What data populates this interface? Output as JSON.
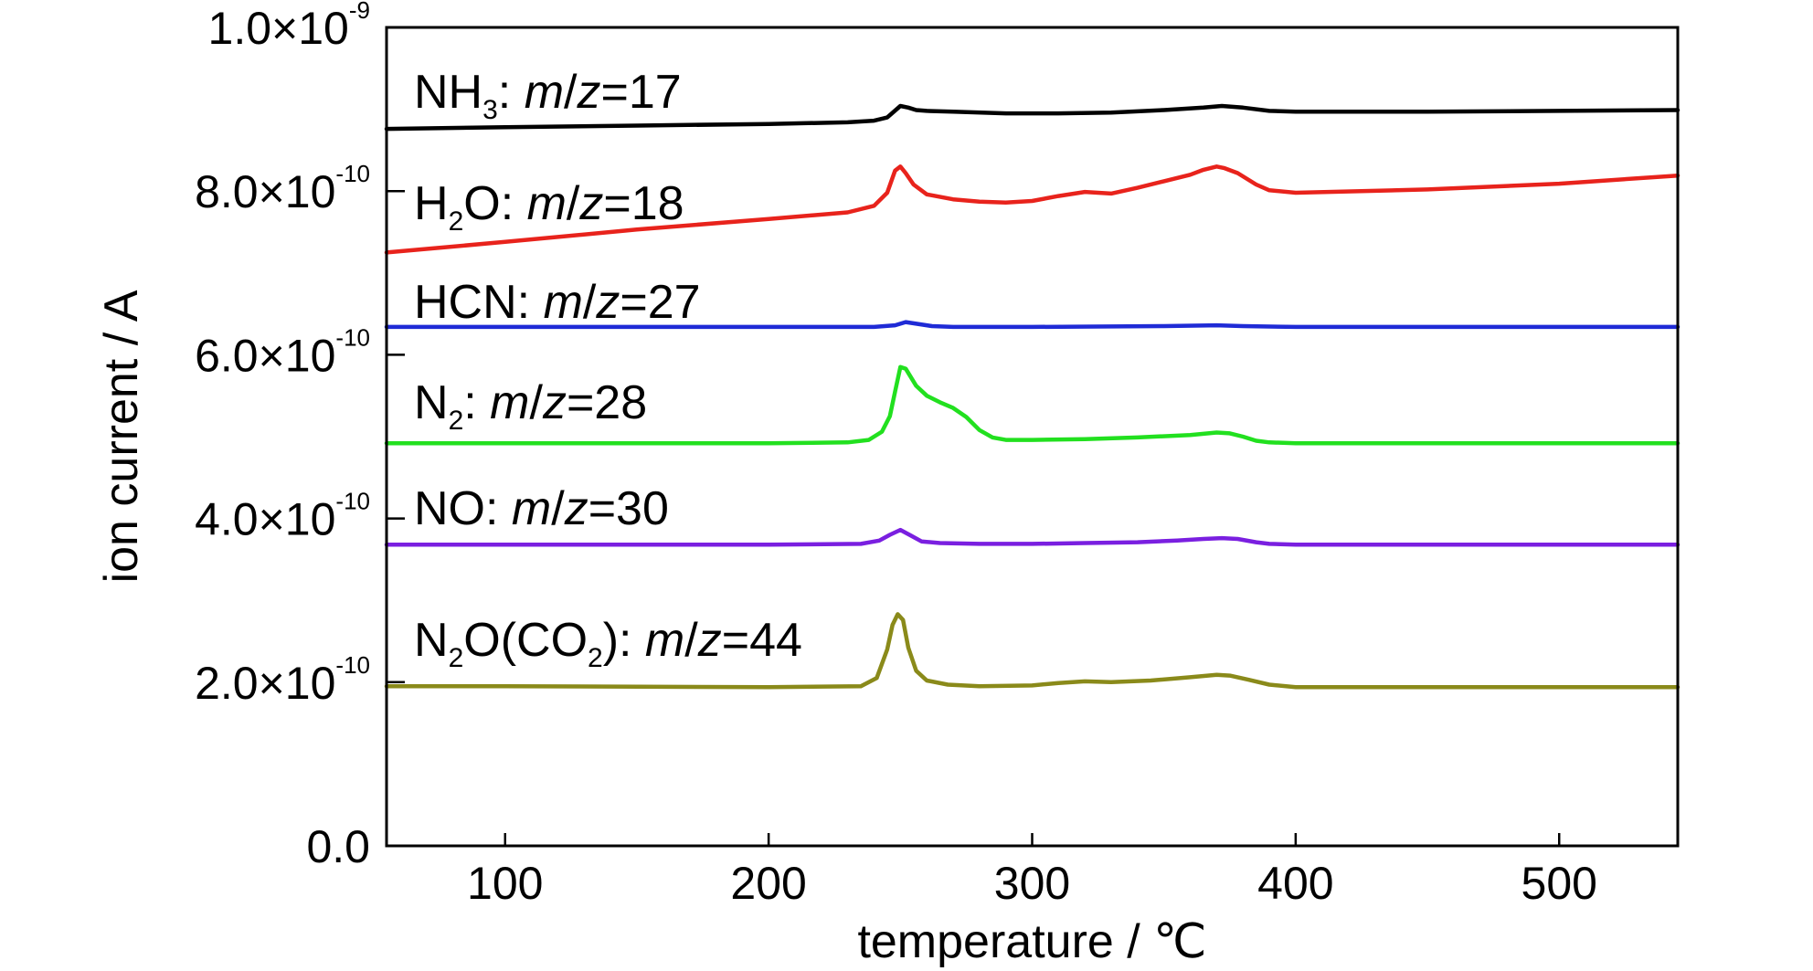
{
  "chart_data": {
    "type": "line",
    "xlabel": "temperature / ℃",
    "ylabel": "ion current / A",
    "xlim": [
      55,
      545
    ],
    "ylim": [
      0,
      1e-09
    ],
    "x_ticks": [
      100,
      200,
      300,
      400,
      500
    ],
    "x_tick_labels": [
      "100",
      "200",
      "300",
      "400",
      "500"
    ],
    "y_ticks": [
      0,
      2e-10,
      4e-10,
      6e-10,
      8e-10,
      1e-09
    ],
    "y_tick_labels": [
      {
        "text": "0.0",
        "mantissa": "0.0",
        "times": "",
        "base": "",
        "exp": ""
      },
      {
        "text": "2.0×10^-10",
        "mantissa": "2.0",
        "times": "×",
        "base": "10",
        "exp": "-10"
      },
      {
        "text": "4.0×10^-10",
        "mantissa": "4.0",
        "times": "×",
        "base": "10",
        "exp": "-10"
      },
      {
        "text": "6.0×10^-10",
        "mantissa": "6.0",
        "times": "×",
        "base": "10",
        "exp": "-10"
      },
      {
        "text": "8.0×10^-10",
        "mantissa": "8.0",
        "times": "×",
        "base": "10",
        "exp": "-10"
      },
      {
        "text": "1.0×10^-9",
        "mantissa": "1.0",
        "times": "×",
        "base": "10",
        "exp": "-9"
      }
    ],
    "grid": false,
    "legend": "inline labels above each curve",
    "series": [
      {
        "name": "NH3: m/z=17",
        "label_parts": [
          {
            "t": "NH",
            "s": ""
          },
          {
            "t": "3",
            "s": "sub"
          },
          {
            "t": ": ",
            "s": ""
          },
          {
            "t": "m",
            "s": "it"
          },
          {
            "t": "/",
            "s": ""
          },
          {
            "t": "z",
            "s": "it"
          },
          {
            "t": "=17",
            "s": ""
          }
        ],
        "color": "#000000",
        "x": [
          55,
          100,
          150,
          200,
          230,
          240,
          245,
          250,
          253,
          256,
          260,
          270,
          290,
          310,
          330,
          350,
          365,
          372,
          380,
          390,
          400,
          450,
          500,
          545
        ],
        "y": [
          8.76e-10,
          8.78e-10,
          8.8e-10,
          8.82e-10,
          8.84e-10,
          8.86e-10,
          8.9e-10,
          9.04e-10,
          9.02e-10,
          8.99e-10,
          8.98e-10,
          8.97e-10,
          8.95e-10,
          8.95e-10,
          8.96e-10,
          8.99e-10,
          9.02e-10,
          9.04e-10,
          9.02e-10,
          8.98e-10,
          8.97e-10,
          8.97e-10,
          8.98e-10,
          8.99e-10
        ]
      },
      {
        "name": "H2O: m/z=18",
        "label_parts": [
          {
            "t": "H",
            "s": ""
          },
          {
            "t": "2",
            "s": "sub"
          },
          {
            "t": "O: ",
            "s": ""
          },
          {
            "t": "m",
            "s": "it"
          },
          {
            "t": "/",
            "s": ""
          },
          {
            "t": "z",
            "s": "it"
          },
          {
            "t": "=18",
            "s": ""
          }
        ],
        "color": "#e8231c",
        "x": [
          55,
          100,
          150,
          200,
          230,
          240,
          245,
          248,
          250,
          252,
          255,
          260,
          270,
          280,
          290,
          300,
          310,
          320,
          330,
          340,
          350,
          360,
          365,
          370,
          373,
          378,
          385,
          390,
          400,
          450,
          500,
          545
        ],
        "y": [
          7.25e-10,
          7.38e-10,
          7.53e-10,
          7.66e-10,
          7.74e-10,
          7.82e-10,
          7.98e-10,
          8.25e-10,
          8.3e-10,
          8.22e-10,
          8.08e-10,
          7.96e-10,
          7.9e-10,
          7.87e-10,
          7.86e-10,
          7.88e-10,
          7.94e-10,
          7.99e-10,
          7.97e-10,
          8.04e-10,
          8.12e-10,
          8.2e-10,
          8.26e-10,
          8.3e-10,
          8.28e-10,
          8.22e-10,
          8.08e-10,
          8.01e-10,
          7.98e-10,
          8.02e-10,
          8.09e-10,
          8.19e-10
        ]
      },
      {
        "name": "HCN: m/z=27",
        "label_parts": [
          {
            "t": "HCN: ",
            "s": ""
          },
          {
            "t": "m",
            "s": "it"
          },
          {
            "t": "/",
            "s": ""
          },
          {
            "t": "z",
            "s": "it"
          },
          {
            "t": "=27",
            "s": ""
          }
        ],
        "color": "#1f2bd6",
        "x": [
          55,
          100,
          200,
          240,
          248,
          252,
          256,
          262,
          270,
          300,
          350,
          370,
          380,
          400,
          500,
          545
        ],
        "y": [
          6.34e-10,
          6.34e-10,
          6.34e-10,
          6.34e-10,
          6.36e-10,
          6.4e-10,
          6.38e-10,
          6.35e-10,
          6.34e-10,
          6.34e-10,
          6.35e-10,
          6.36e-10,
          6.35e-10,
          6.34e-10,
          6.34e-10,
          6.34e-10
        ]
      },
      {
        "name": "N2: m/z=28",
        "label_parts": [
          {
            "t": "N",
            "s": ""
          },
          {
            "t": "2",
            "s": "sub"
          },
          {
            "t": ": ",
            "s": ""
          },
          {
            "t": "m",
            "s": "it"
          },
          {
            "t": "/",
            "s": ""
          },
          {
            "t": "z",
            "s": "it"
          },
          {
            "t": "=28",
            "s": ""
          }
        ],
        "color": "#22e01f",
        "x": [
          55,
          100,
          200,
          230,
          238,
          243,
          246,
          248,
          250,
          252,
          256,
          260,
          265,
          270,
          275,
          280,
          285,
          290,
          300,
          320,
          340,
          360,
          370,
          375,
          380,
          385,
          390,
          400,
          500,
          545
        ],
        "y": [
          4.92e-10,
          4.92e-10,
          4.92e-10,
          4.93e-10,
          4.96e-10,
          5.06e-10,
          5.25e-10,
          5.55e-10,
          5.85e-10,
          5.83e-10,
          5.62e-10,
          5.5e-10,
          5.42e-10,
          5.35e-10,
          5.24e-10,
          5.08e-10,
          4.99e-10,
          4.96e-10,
          4.96e-10,
          4.97e-10,
          4.99e-10,
          5.02e-10,
          5.05e-10,
          5.04e-10,
          5e-10,
          4.95e-10,
          4.93e-10,
          4.92e-10,
          4.92e-10,
          4.92e-10
        ]
      },
      {
        "name": "NO: m/z=30",
        "label_parts": [
          {
            "t": "NO: ",
            "s": ""
          },
          {
            "t": "m",
            "s": "it"
          },
          {
            "t": "/",
            "s": ""
          },
          {
            "t": "z",
            "s": "it"
          },
          {
            "t": "=30",
            "s": ""
          }
        ],
        "color": "#7a1fe0",
        "x": [
          55,
          100,
          200,
          235,
          242,
          246,
          250,
          254,
          258,
          265,
          280,
          300,
          320,
          340,
          355,
          365,
          372,
          378,
          385,
          390,
          400,
          500,
          545
        ],
        "y": [
          3.68e-10,
          3.68e-10,
          3.68e-10,
          3.69e-10,
          3.73e-10,
          3.8e-10,
          3.86e-10,
          3.79e-10,
          3.72e-10,
          3.7e-10,
          3.69e-10,
          3.69e-10,
          3.7e-10,
          3.71e-10,
          3.73e-10,
          3.75e-10,
          3.76e-10,
          3.75e-10,
          3.71e-10,
          3.69e-10,
          3.68e-10,
          3.68e-10,
          3.68e-10
        ]
      },
      {
        "name": "N2O(CO2): m/z=44",
        "label_parts": [
          {
            "t": "N",
            "s": ""
          },
          {
            "t": "2",
            "s": "sub"
          },
          {
            "t": "O(CO",
            "s": ""
          },
          {
            "t": "2",
            "s": "sub"
          },
          {
            "t": "): ",
            "s": ""
          },
          {
            "t": "m",
            "s": "it"
          },
          {
            "t": "/",
            "s": ""
          },
          {
            "t": "z",
            "s": "it"
          },
          {
            "t": "=44",
            "s": ""
          }
        ],
        "color": "#8a8a1a",
        "x": [
          55,
          100,
          200,
          235,
          241,
          245,
          247,
          249,
          251,
          253,
          256,
          260,
          268,
          280,
          300,
          310,
          320,
          330,
          345,
          360,
          370,
          375,
          382,
          390,
          400,
          500,
          545
        ],
        "y": [
          1.95e-10,
          1.95e-10,
          1.94e-10,
          1.95e-10,
          2.05e-10,
          2.4e-10,
          2.7e-10,
          2.83e-10,
          2.76e-10,
          2.42e-10,
          2.14e-10,
          2.02e-10,
          1.97e-10,
          1.95e-10,
          1.96e-10,
          1.99e-10,
          2.01e-10,
          2e-10,
          2.02e-10,
          2.06e-10,
          2.09e-10,
          2.08e-10,
          2.03e-10,
          1.97e-10,
          1.94e-10,
          1.94e-10,
          1.94e-10
        ]
      }
    ]
  }
}
